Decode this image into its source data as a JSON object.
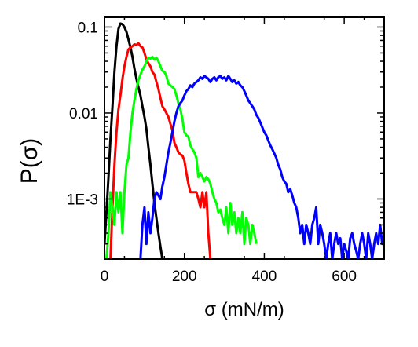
{
  "chart_data": {
    "type": "line",
    "title": "",
    "xlabel": "σ (mN/m)",
    "ylabel": "P(σ)",
    "xlim": [
      0,
      700
    ],
    "ylim": [
      0.0002,
      0.13
    ],
    "yscale": "log",
    "grid": false,
    "legend": "none",
    "x_ticks": [
      {
        "value": 0,
        "label": "0"
      },
      {
        "value": 200,
        "label": "200"
      },
      {
        "value": 400,
        "label": "400"
      },
      {
        "value": 600,
        "label": "600"
      }
    ],
    "y_ticks": [
      {
        "value": 0.1,
        "label": "0.1"
      },
      {
        "value": 0.01,
        "label": "0.01"
      },
      {
        "value": 0.001,
        "label": "1E-3"
      }
    ],
    "series": [
      {
        "color": "#000000",
        "points": [
          [
            0,
            0.0003
          ],
          [
            5,
            0.0007
          ],
          [
            10,
            0.0018
          ],
          [
            15,
            0.005
          ],
          [
            20,
            0.012
          ],
          [
            25,
            0.03
          ],
          [
            30,
            0.06
          ],
          [
            35,
            0.095
          ],
          [
            40,
            0.11
          ],
          [
            45,
            0.108
          ],
          [
            50,
            0.1
          ],
          [
            55,
            0.088
          ],
          [
            60,
            0.072
          ],
          [
            65,
            0.058
          ],
          [
            70,
            0.045
          ],
          [
            75,
            0.033
          ],
          [
            80,
            0.025
          ],
          [
            85,
            0.02
          ],
          [
            90,
            0.016
          ],
          [
            95,
            0.012
          ],
          [
            100,
            0.009
          ],
          [
            105,
            0.0065
          ],
          [
            110,
            0.004
          ],
          [
            115,
            0.0025
          ],
          [
            120,
            0.0015
          ],
          [
            125,
            0.0009
          ],
          [
            130,
            0.0006
          ],
          [
            135,
            0.0004
          ],
          [
            140,
            0.00028
          ],
          [
            145,
            0.0002
          ]
        ]
      },
      {
        "color": "#ff0000",
        "points": [
          [
            15,
            0.0002
          ],
          [
            20,
            0.0008
          ],
          [
            25,
            0.0025
          ],
          [
            30,
            0.006
          ],
          [
            35,
            0.011
          ],
          [
            40,
            0.016
          ],
          [
            45,
            0.025
          ],
          [
            50,
            0.035
          ],
          [
            55,
            0.045
          ],
          [
            60,
            0.055
          ],
          [
            65,
            0.058
          ],
          [
            70,
            0.06
          ],
          [
            75,
            0.063
          ],
          [
            80,
            0.062
          ],
          [
            85,
            0.065
          ],
          [
            90,
            0.06
          ],
          [
            95,
            0.058
          ],
          [
            100,
            0.05
          ],
          [
            105,
            0.042
          ],
          [
            110,
            0.038
          ],
          [
            115,
            0.035
          ],
          [
            120,
            0.03
          ],
          [
            125,
            0.028
          ],
          [
            130,
            0.023
          ],
          [
            135,
            0.019
          ],
          [
            140,
            0.015
          ],
          [
            145,
            0.012
          ],
          [
            150,
            0.011
          ],
          [
            155,
            0.01
          ],
          [
            160,
            0.009
          ],
          [
            165,
            0.0075
          ],
          [
            170,
            0.0063
          ],
          [
            175,
            0.0045
          ],
          [
            180,
            0.004
          ],
          [
            185,
            0.0035
          ],
          [
            190,
            0.0033
          ],
          [
            195,
            0.0032
          ],
          [
            200,
            0.0028
          ],
          [
            205,
            0.002
          ],
          [
            210,
            0.0015
          ],
          [
            215,
            0.0012
          ],
          [
            220,
            0.0012
          ],
          [
            225,
            0.0012
          ],
          [
            230,
            0.0012
          ],
          [
            235,
            0.001
          ],
          [
            240,
            0.0008
          ],
          [
            245,
            0.0012
          ],
          [
            250,
            0.0008
          ],
          [
            255,
            0.0012
          ],
          [
            260,
            0.0004
          ],
          [
            265,
            0.0002
          ]
        ]
      },
      {
        "color": "#00ff00",
        "points": [
          [
            5,
            0.0002
          ],
          [
            10,
            0.0004
          ],
          [
            15,
            0.0012
          ],
          [
            20,
            0.0008
          ],
          [
            25,
            0.0005
          ],
          [
            30,
            0.0012
          ],
          [
            35,
            0.0007
          ],
          [
            40,
            0.0012
          ],
          [
            45,
            0.0004
          ],
          [
            50,
            0.0012
          ],
          [
            55,
            0.0025
          ],
          [
            60,
            0.003
          ],
          [
            65,
            0.006
          ],
          [
            70,
            0.01
          ],
          [
            75,
            0.014
          ],
          [
            80,
            0.019
          ],
          [
            85,
            0.024
          ],
          [
            90,
            0.028
          ],
          [
            95,
            0.032
          ],
          [
            100,
            0.035
          ],
          [
            105,
            0.04
          ],
          [
            110,
            0.044
          ],
          [
            115,
            0.043
          ],
          [
            120,
            0.045
          ],
          [
            125,
            0.042
          ],
          [
            130,
            0.044
          ],
          [
            135,
            0.04
          ],
          [
            140,
            0.035
          ],
          [
            145,
            0.031
          ],
          [
            150,
            0.03
          ],
          [
            155,
            0.027
          ],
          [
            160,
            0.022
          ],
          [
            165,
            0.021
          ],
          [
            170,
            0.02
          ],
          [
            175,
            0.019
          ],
          [
            180,
            0.016
          ],
          [
            185,
            0.013
          ],
          [
            190,
            0.011
          ],
          [
            195,
            0.0085
          ],
          [
            200,
            0.006
          ],
          [
            205,
            0.0055
          ],
          [
            210,
            0.0053
          ],
          [
            215,
            0.0042
          ],
          [
            220,
            0.0038
          ],
          [
            225,
            0.0035
          ],
          [
            230,
            0.003
          ],
          [
            235,
            0.0018
          ],
          [
            240,
            0.002
          ],
          [
            245,
            0.0018
          ],
          [
            250,
            0.0016
          ],
          [
            255,
            0.0018
          ],
          [
            260,
            0.0017
          ],
          [
            265,
            0.0015
          ],
          [
            270,
            0.0012
          ],
          [
            275,
            0.001
          ],
          [
            280,
            0.0009
          ],
          [
            285,
            0.0007
          ],
          [
            290,
            0.00075
          ],
          [
            295,
            0.0006
          ],
          [
            300,
            0.0005
          ],
          [
            305,
            0.0008
          ],
          [
            310,
            0.0004
          ],
          [
            315,
            0.0009
          ],
          [
            320,
            0.0005
          ],
          [
            325,
            0.0007
          ],
          [
            330,
            0.0004
          ],
          [
            335,
            0.0006
          ],
          [
            340,
            0.0004
          ],
          [
            345,
            0.0007
          ],
          [
            350,
            0.0003
          ],
          [
            355,
            0.0006
          ],
          [
            360,
            0.0005
          ],
          [
            365,
            0.0003
          ],
          [
            370,
            0.0005
          ],
          [
            375,
            0.0004
          ],
          [
            380,
            0.0003
          ]
        ]
      },
      {
        "color": "#0000ff",
        "points": [
          [
            90,
            0.0002
          ],
          [
            95,
            0.0005
          ],
          [
            100,
            0.0008
          ],
          [
            105,
            0.0003
          ],
          [
            110,
            0.0007
          ],
          [
            115,
            0.0004
          ],
          [
            120,
            0.0006
          ],
          [
            125,
            0.001
          ],
          [
            130,
            0.0012
          ],
          [
            135,
            0.0011
          ],
          [
            140,
            0.001
          ],
          [
            145,
            0.0014
          ],
          [
            150,
            0.0018
          ],
          [
            155,
            0.0025
          ],
          [
            160,
            0.0035
          ],
          [
            165,
            0.0045
          ],
          [
            170,
            0.006
          ],
          [
            175,
            0.008
          ],
          [
            180,
            0.01
          ],
          [
            185,
            0.012
          ],
          [
            190,
            0.013
          ],
          [
            195,
            0.014
          ],
          [
            200,
            0.016
          ],
          [
            205,
            0.018
          ],
          [
            210,
            0.019
          ],
          [
            215,
            0.021
          ],
          [
            220,
            0.02
          ],
          [
            225,
            0.022
          ],
          [
            230,
            0.023
          ],
          [
            235,
            0.024
          ],
          [
            240,
            0.026
          ],
          [
            245,
            0.025
          ],
          [
            250,
            0.027
          ],
          [
            255,
            0.026
          ],
          [
            260,
            0.025
          ],
          [
            265,
            0.023
          ],
          [
            270,
            0.025
          ],
          [
            275,
            0.026
          ],
          [
            280,
            0.024
          ],
          [
            285,
            0.026
          ],
          [
            290,
            0.027
          ],
          [
            295,
            0.025
          ],
          [
            300,
            0.026
          ],
          [
            305,
            0.024
          ],
          [
            310,
            0.027
          ],
          [
            315,
            0.025
          ],
          [
            320,
            0.023
          ],
          [
            325,
            0.024
          ],
          [
            330,
            0.022
          ],
          [
            335,
            0.023
          ],
          [
            340,
            0.021
          ],
          [
            345,
            0.02
          ],
          [
            350,
            0.018
          ],
          [
            355,
            0.016
          ],
          [
            360,
            0.014
          ],
          [
            365,
            0.013
          ],
          [
            370,
            0.012
          ],
          [
            375,
            0.011
          ],
          [
            380,
            0.0095
          ],
          [
            385,
            0.0088
          ],
          [
            390,
            0.0078
          ],
          [
            395,
            0.0068
          ],
          [
            400,
            0.006
          ],
          [
            405,
            0.0055
          ],
          [
            410,
            0.0048
          ],
          [
            415,
            0.0042
          ],
          [
            420,
            0.0038
          ],
          [
            425,
            0.0034
          ],
          [
            430,
            0.003
          ],
          [
            435,
            0.0025
          ],
          [
            440,
            0.0022
          ],
          [
            445,
            0.0018
          ],
          [
            450,
            0.0016
          ],
          [
            455,
            0.0015
          ],
          [
            460,
            0.0012
          ],
          [
            465,
            0.0013
          ],
          [
            470,
            0.0011
          ],
          [
            475,
            0.0009
          ],
          [
            480,
            0.0008
          ],
          [
            485,
            0.0006
          ],
          [
            490,
            0.0004
          ],
          [
            495,
            0.0005
          ],
          [
            500,
            0.0003
          ],
          [
            505,
            0.0005
          ],
          [
            510,
            0.0004
          ],
          [
            515,
            0.0003
          ],
          [
            520,
            0.0005
          ],
          [
            525,
            0.0006
          ],
          [
            530,
            0.0008
          ],
          [
            535,
            0.0003
          ],
          [
            540,
            0.0005
          ],
          [
            545,
            0.0004
          ],
          [
            550,
            0.0003
          ],
          [
            555,
            0.0002
          ],
          [
            560,
            0.0003
          ],
          [
            565,
            0.0004
          ],
          [
            570,
            0.0002
          ],
          [
            575,
            0.0003
          ],
          [
            580,
            0.0004
          ],
          [
            585,
            0.0003
          ],
          [
            590,
            0.00035
          ],
          [
            595,
            0.0002
          ],
          [
            600,
            0.0003
          ],
          [
            605,
            0.00025
          ],
          [
            610,
            0.0002
          ],
          [
            615,
            0.00035
          ],
          [
            620,
            0.0004
          ],
          [
            625,
            0.0003
          ],
          [
            630,
            0.00025
          ],
          [
            635,
            0.0002
          ],
          [
            640,
            0.0003
          ],
          [
            645,
            0.0004
          ],
          [
            650,
            0.0003
          ],
          [
            655,
            0.0002
          ],
          [
            660,
            0.0004
          ],
          [
            665,
            0.0003
          ],
          [
            670,
            0.0002
          ],
          [
            675,
            0.0003
          ],
          [
            680,
            0.0004
          ],
          [
            685,
            0.0003
          ],
          [
            690,
            0.0005
          ],
          [
            695,
            0.0003
          ],
          [
            700,
            0.0004
          ]
        ]
      }
    ]
  }
}
